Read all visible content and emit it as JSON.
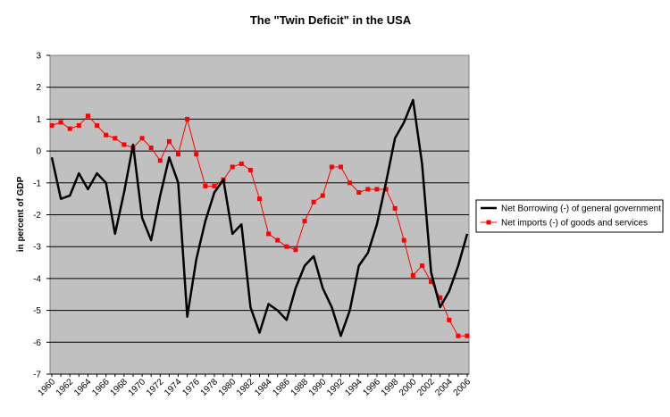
{
  "chart_data": {
    "type": "line",
    "title": "The \"Twin Deficit\" in the USA",
    "xlabel": "",
    "ylabel": "in percent of GDP",
    "ylim": [
      -7,
      3
    ],
    "yticks": [
      "3",
      "2",
      "1",
      "0",
      "-1",
      "-2",
      "-3",
      "-4",
      "-5",
      "-6",
      "-7"
    ],
    "xticks": [
      "1960",
      "1962",
      "1964",
      "1966",
      "1968",
      "1970",
      "1972",
      "1974",
      "1976",
      "1978",
      "1980",
      "1982",
      "1984",
      "1986",
      "1988",
      "1990",
      "1992",
      "1994",
      "1996",
      "1998",
      "2000",
      "2002",
      "2004",
      "2006"
    ],
    "x": [
      1960,
      1961,
      1962,
      1963,
      1964,
      1965,
      1966,
      1967,
      1968,
      1969,
      1970,
      1971,
      1972,
      1973,
      1974,
      1975,
      1976,
      1977,
      1978,
      1979,
      1980,
      1981,
      1982,
      1983,
      1984,
      1985,
      1986,
      1987,
      1988,
      1989,
      1990,
      1991,
      1992,
      1993,
      1994,
      1995,
      1996,
      1997,
      1998,
      1999,
      2000,
      2001,
      2002,
      2003,
      2004,
      2005,
      2006
    ],
    "grid": "horizontal",
    "background": "#c0c0c0",
    "legend_position": "right",
    "series": [
      {
        "name": "Net Borrowing (-) of general government",
        "color": "#000000",
        "marker": "none",
        "values": [
          -0.2,
          -1.5,
          -1.4,
          -0.7,
          -1.2,
          -0.7,
          -1.0,
          -2.6,
          -1.3,
          0.2,
          -2.1,
          -2.8,
          -1.4,
          -0.2,
          -1.0,
          -5.2,
          -3.4,
          -2.2,
          -1.3,
          -0.9,
          -2.6,
          -2.3,
          -4.9,
          -5.7,
          -4.8,
          -5.0,
          -5.3,
          -4.3,
          -3.6,
          -3.3,
          -4.3,
          -4.9,
          -5.8,
          -5.0,
          -3.6,
          -3.2,
          -2.3,
          -1.0,
          0.4,
          0.9,
          1.6,
          -0.4,
          -3.8,
          -4.9,
          -4.4,
          -3.6,
          -2.6
        ]
      },
      {
        "name": "Net imports (-) of goods and services",
        "color": "#ff0000",
        "marker": "square",
        "values": [
          0.8,
          0.9,
          0.7,
          0.8,
          1.1,
          0.8,
          0.5,
          0.4,
          0.2,
          0.1,
          0.4,
          0.1,
          -0.3,
          0.3,
          -0.1,
          1.0,
          -0.1,
          -1.1,
          -1.1,
          -0.9,
          -0.5,
          -0.4,
          -0.6,
          -1.5,
          -2.6,
          -2.8,
          -3.0,
          -3.1,
          -2.2,
          -1.6,
          -1.4,
          -0.5,
          -0.5,
          -1.0,
          -1.3,
          -1.2,
          -1.2,
          -1.2,
          -1.8,
          -2.8,
          -3.9,
          -3.6,
          -4.1,
          -4.6,
          -5.3,
          -5.8,
          -5.8
        ]
      }
    ]
  }
}
